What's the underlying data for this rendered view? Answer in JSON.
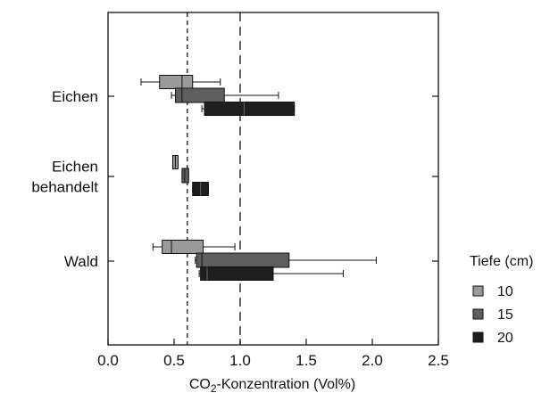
{
  "chart_data": {
    "type": "box",
    "orientation": "horizontal",
    "xlabel_prefix": "CO",
    "xlabel_sub": "2",
    "xlabel_suffix": "-Konzentration (Vol%)",
    "xlim": [
      0.0,
      2.5
    ],
    "xticks": [
      "0.0",
      "0.5",
      "1.0",
      "1.5",
      "2.0",
      "2.5"
    ],
    "reference_lines": [
      {
        "x": 0.6,
        "style": "short-dash"
      },
      {
        "x": 1.0,
        "style": "long-dash"
      }
    ],
    "groups": [
      {
        "label_lines": [
          "Eichen"
        ]
      },
      {
        "label_lines": [
          "Eichen",
          "behandelt"
        ]
      },
      {
        "label_lines": [
          "Wald"
        ]
      }
    ],
    "legend": {
      "title": "Tiefe (cm)",
      "position": "right",
      "entries": [
        {
          "label": "10",
          "color": "#9a9a9a"
        },
        {
          "label": "15",
          "color": "#5e5e5e"
        },
        {
          "label": "20",
          "color": "#1e1e1e"
        }
      ]
    },
    "series": [
      {
        "depth": "10",
        "color": "#9a9a9a",
        "boxes": [
          {
            "group": 0,
            "whisker_low": 0.25,
            "q1": 0.39,
            "median": 0.56,
            "q3": 0.64,
            "whisker_high": 0.85
          },
          {
            "group": 1,
            "whisker_low": 0.49,
            "q1": 0.49,
            "median": 0.51,
            "q3": 0.53,
            "whisker_high": 0.53
          },
          {
            "group": 2,
            "whisker_low": 0.34,
            "q1": 0.41,
            "median": 0.48,
            "q3": 0.72,
            "whisker_high": 0.96
          }
        ]
      },
      {
        "depth": "15",
        "color": "#5e5e5e",
        "boxes": [
          {
            "group": 0,
            "whisker_low": 0.48,
            "q1": 0.51,
            "median": 0.56,
            "q3": 0.88,
            "whisker_high": 1.29
          },
          {
            "group": 1,
            "whisker_low": 0.56,
            "q1": 0.56,
            "median": 0.58,
            "q3": 0.61,
            "whisker_high": 0.61
          },
          {
            "group": 2,
            "whisker_low": 0.66,
            "q1": 0.67,
            "median": 0.71,
            "q3": 1.37,
            "whisker_high": 2.03
          }
        ]
      },
      {
        "depth": "20",
        "color": "#1e1e1e",
        "boxes": [
          {
            "group": 0,
            "whisker_low": 0.71,
            "q1": 0.73,
            "median": 1.03,
            "q3": 1.41,
            "whisker_high": 1.41
          },
          {
            "group": 1,
            "whisker_low": 0.64,
            "q1": 0.64,
            "median": 0.7,
            "q3": 0.76,
            "whisker_high": 0.76
          },
          {
            "group": 2,
            "whisker_low": 0.69,
            "q1": 0.7,
            "median": 0.75,
            "q3": 1.25,
            "whisker_high": 1.78
          }
        ]
      }
    ]
  }
}
